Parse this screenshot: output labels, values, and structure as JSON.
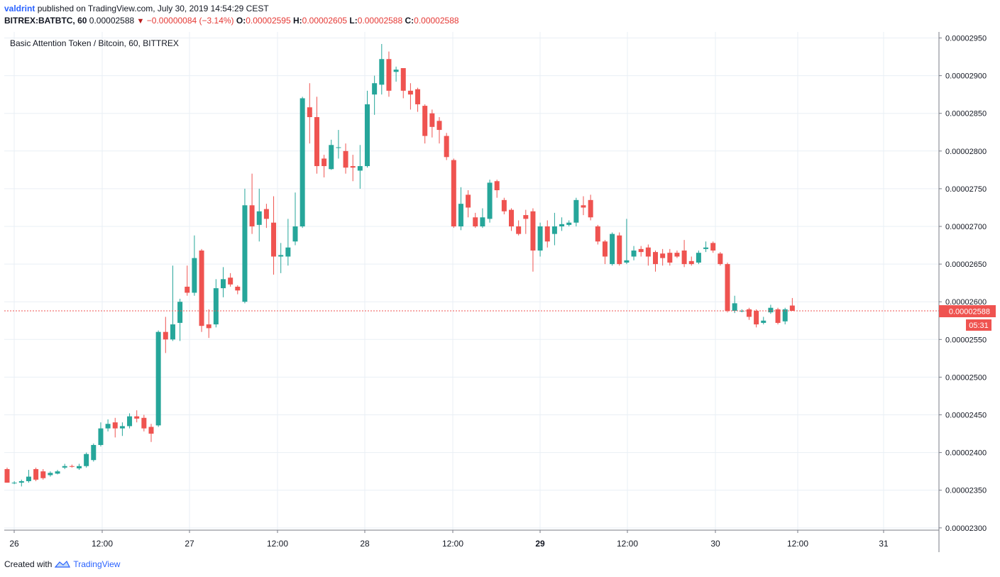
{
  "header": {
    "author": "valdrint",
    "published": "published on TradingView.com, July 30, 2019 14:54:29 CEST",
    "symbol": "BITREX:BATBTC, 60",
    "last": "0.00002588",
    "change": "−0.00000084 (−3.14%)",
    "o_label": "O:",
    "o_value": "0.00002595",
    "h_label": "H:",
    "h_value": "0.00002605",
    "l_label": "L:",
    "l_value": "0.00002588",
    "c_label": "C:",
    "c_value": "0.00002588"
  },
  "colors": {
    "up": "#26a69a",
    "down": "#ef5350",
    "grid": "#e9eff5",
    "axis": "#787b86",
    "link": "#2962ff"
  },
  "chart_data": {
    "type": "candlestick",
    "title": "Basic Attention Token / Bitcoin, 60, BITTREX",
    "ylim": [
      2.3e-05,
      2.95e-05
    ],
    "yticks": [
      "0.00002950",
      "0.00002900",
      "0.00002850",
      "0.00002800",
      "0.00002750",
      "0.00002700",
      "0.00002650",
      "0.00002600",
      "0.00002550",
      "0.00002500",
      "0.00002450",
      "0.00002400",
      "0.00002350",
      "0.00002300"
    ],
    "xticks": [
      "26",
      "12:00",
      "27",
      "12:00",
      "28",
      "12:00",
      "29",
      "12:00",
      "30",
      "12:00",
      "31"
    ],
    "last_price_label": "0.00002588",
    "countdown_label": "05:31",
    "last_price": 2.588e-05,
    "candles": [
      [
        2378,
        2360,
        2380,
        2360
      ],
      [
        2360,
        2360,
        2362,
        2358
      ],
      [
        2360,
        2362,
        2364,
        2355
      ],
      [
        2362,
        2368,
        2377,
        2360
      ],
      [
        2378,
        2364,
        2380,
        2362
      ],
      [
        2375,
        2366,
        2378,
        2364
      ],
      [
        2370,
        2373,
        2375,
        2368
      ],
      [
        2372,
        2375,
        2377,
        2371
      ],
      [
        2380,
        2382,
        2385,
        2378
      ],
      [
        2382,
        2381,
        2384,
        2380
      ],
      [
        2379,
        2382,
        2385,
        2377
      ],
      [
        2382,
        2398,
        2400,
        2380
      ],
      [
        2390,
        2410,
        2412,
        2388
      ],
      [
        2410,
        2432,
        2440,
        2408
      ],
      [
        2432,
        2438,
        2444,
        2428
      ],
      [
        2440,
        2432,
        2446,
        2420
      ],
      [
        2432,
        2435,
        2440,
        2422
      ],
      [
        2435,
        2448,
        2452,
        2432
      ],
      [
        2448,
        2445,
        2456,
        2440
      ],
      [
        2446,
        2432,
        2450,
        2428
      ],
      [
        2434,
        2425,
        2438,
        2414
      ],
      [
        2436,
        2560,
        2562,
        2434
      ],
      [
        2560,
        2550,
        2580,
        2532
      ],
      [
        2550,
        2570,
        2648,
        2548
      ],
      [
        2572,
        2600,
        2604,
        2548
      ],
      [
        2620,
        2612,
        2648,
        2608
      ],
      [
        2612,
        2658,
        2688,
        2608
      ],
      [
        2668,
        2568,
        2670,
        2560
      ],
      [
        2570,
        2565,
        2590,
        2552
      ],
      [
        2570,
        2618,
        2630,
        2566
      ],
      [
        2618,
        2630,
        2646,
        2606
      ],
      [
        2632,
        2623,
        2638,
        2620
      ],
      [
        2620,
        2615,
        2622,
        2610
      ],
      [
        2600,
        2728,
        2750,
        2598
      ],
      [
        2728,
        2700,
        2770,
        2690
      ],
      [
        2702,
        2720,
        2750,
        2680
      ],
      [
        2723,
        2710,
        2730,
        2698
      ],
      [
        2705,
        2660,
        2740,
        2636
      ],
      [
        2660,
        2662,
        2678,
        2638
      ],
      [
        2660,
        2672,
        2710,
        2648
      ],
      [
        2680,
        2700,
        2745,
        2675
      ],
      [
        2700,
        2870,
        2872,
        2698
      ],
      [
        2858,
        2845,
        2890,
        2810
      ],
      [
        2845,
        2780,
        2872,
        2770
      ],
      [
        2790,
        2780,
        2795,
        2765
      ],
      [
        2776,
        2808,
        2815,
        2775
      ],
      [
        2805,
        2805,
        2828,
        2790
      ],
      [
        2800,
        2778,
        2810,
        2770
      ],
      [
        2780,
        2778,
        2795,
        2760
      ],
      [
        2774,
        2780,
        2808,
        2750
      ],
      [
        2780,
        2862,
        2880,
        2778
      ],
      [
        2875,
        2890,
        2900,
        2848
      ],
      [
        2888,
        2922,
        2942,
        2875
      ],
      [
        2922,
        2880,
        2932,
        2872
      ],
      [
        2905,
        2908,
        2912,
        2892
      ],
      [
        2910,
        2880,
        2908,
        2870
      ],
      [
        2880,
        2875,
        2890,
        2855
      ],
      [
        2882,
        2862,
        2884,
        2852
      ],
      [
        2860,
        2820,
        2862,
        2810
      ],
      [
        2850,
        2832,
        2855,
        2818
      ],
      [
        2840,
        2828,
        2845,
        2810
      ],
      [
        2820,
        2792,
        2824,
        2788
      ],
      [
        2788,
        2700,
        2790,
        2698
      ],
      [
        2700,
        2730,
        2752,
        2695
      ],
      [
        2742,
        2725,
        2748,
        2712
      ],
      [
        2712,
        2700,
        2718,
        2698
      ],
      [
        2700,
        2712,
        2724,
        2698
      ],
      [
        2710,
        2758,
        2762,
        2705
      ],
      [
        2760,
        2748,
        2762,
        2738
      ],
      [
        2735,
        2720,
        2738,
        2716
      ],
      [
        2722,
        2700,
        2724,
        2694
      ],
      [
        2700,
        2690,
        2708,
        2688
      ],
      [
        2715,
        2710,
        2722,
        2690
      ],
      [
        2720,
        2668,
        2724,
        2640
      ],
      [
        2668,
        2700,
        2705,
        2660
      ],
      [
        2700,
        2680,
        2708,
        2672
      ],
      [
        2690,
        2700,
        2718,
        2675
      ],
      [
        2700,
        2703,
        2712,
        2694
      ],
      [
        2702,
        2705,
        2708,
        2700
      ],
      [
        2705,
        2735,
        2738,
        2700
      ],
      [
        2728,
        2725,
        2740,
        2715
      ],
      [
        2735,
        2712,
        2742,
        2708
      ],
      [
        2700,
        2680,
        2702,
        2676
      ],
      [
        2680,
        2660,
        2682,
        2650
      ],
      [
        2650,
        2690,
        2692,
        2648
      ],
      [
        2688,
        2650,
        2692,
        2648
      ],
      [
        2652,
        2655,
        2710,
        2650
      ],
      [
        2660,
        2668,
        2674,
        2655
      ],
      [
        2670,
        2666,
        2674,
        2660
      ],
      [
        2672,
        2660,
        2676,
        2648
      ],
      [
        2666,
        2650,
        2668,
        2640
      ],
      [
        2664,
        2658,
        2670,
        2648
      ],
      [
        2665,
        2652,
        2670,
        2648
      ],
      [
        2665,
        2660,
        2668,
        2658
      ],
      [
        2668,
        2650,
        2682,
        2646
      ],
      [
        2654,
        2650,
        2660,
        2648
      ],
      [
        2652,
        2665,
        2668,
        2650
      ],
      [
        2670,
        2672,
        2680,
        2666
      ],
      [
        2678,
        2668,
        2680,
        2665
      ],
      [
        2664,
        2650,
        2666,
        2648
      ],
      [
        2650,
        2588,
        2652,
        2586
      ],
      [
        2588,
        2598,
        2608,
        2585
      ],
      [
        2588,
        2588,
        2590,
        2586
      ],
      [
        2590,
        2580,
        2592,
        2576
      ],
      [
        2588,
        2570,
        2590,
        2566
      ],
      [
        2572,
        2575,
        2580,
        2570
      ],
      [
        2586,
        2592,
        2596,
        2584
      ],
      [
        2590,
        2572,
        2592,
        2570
      ],
      [
        2574,
        2590,
        2592,
        2570
      ],
      [
        2595,
        2588,
        2605,
        2588
      ]
    ]
  },
  "footer": {
    "created_with": "Created with",
    "brand": "TradingView"
  }
}
